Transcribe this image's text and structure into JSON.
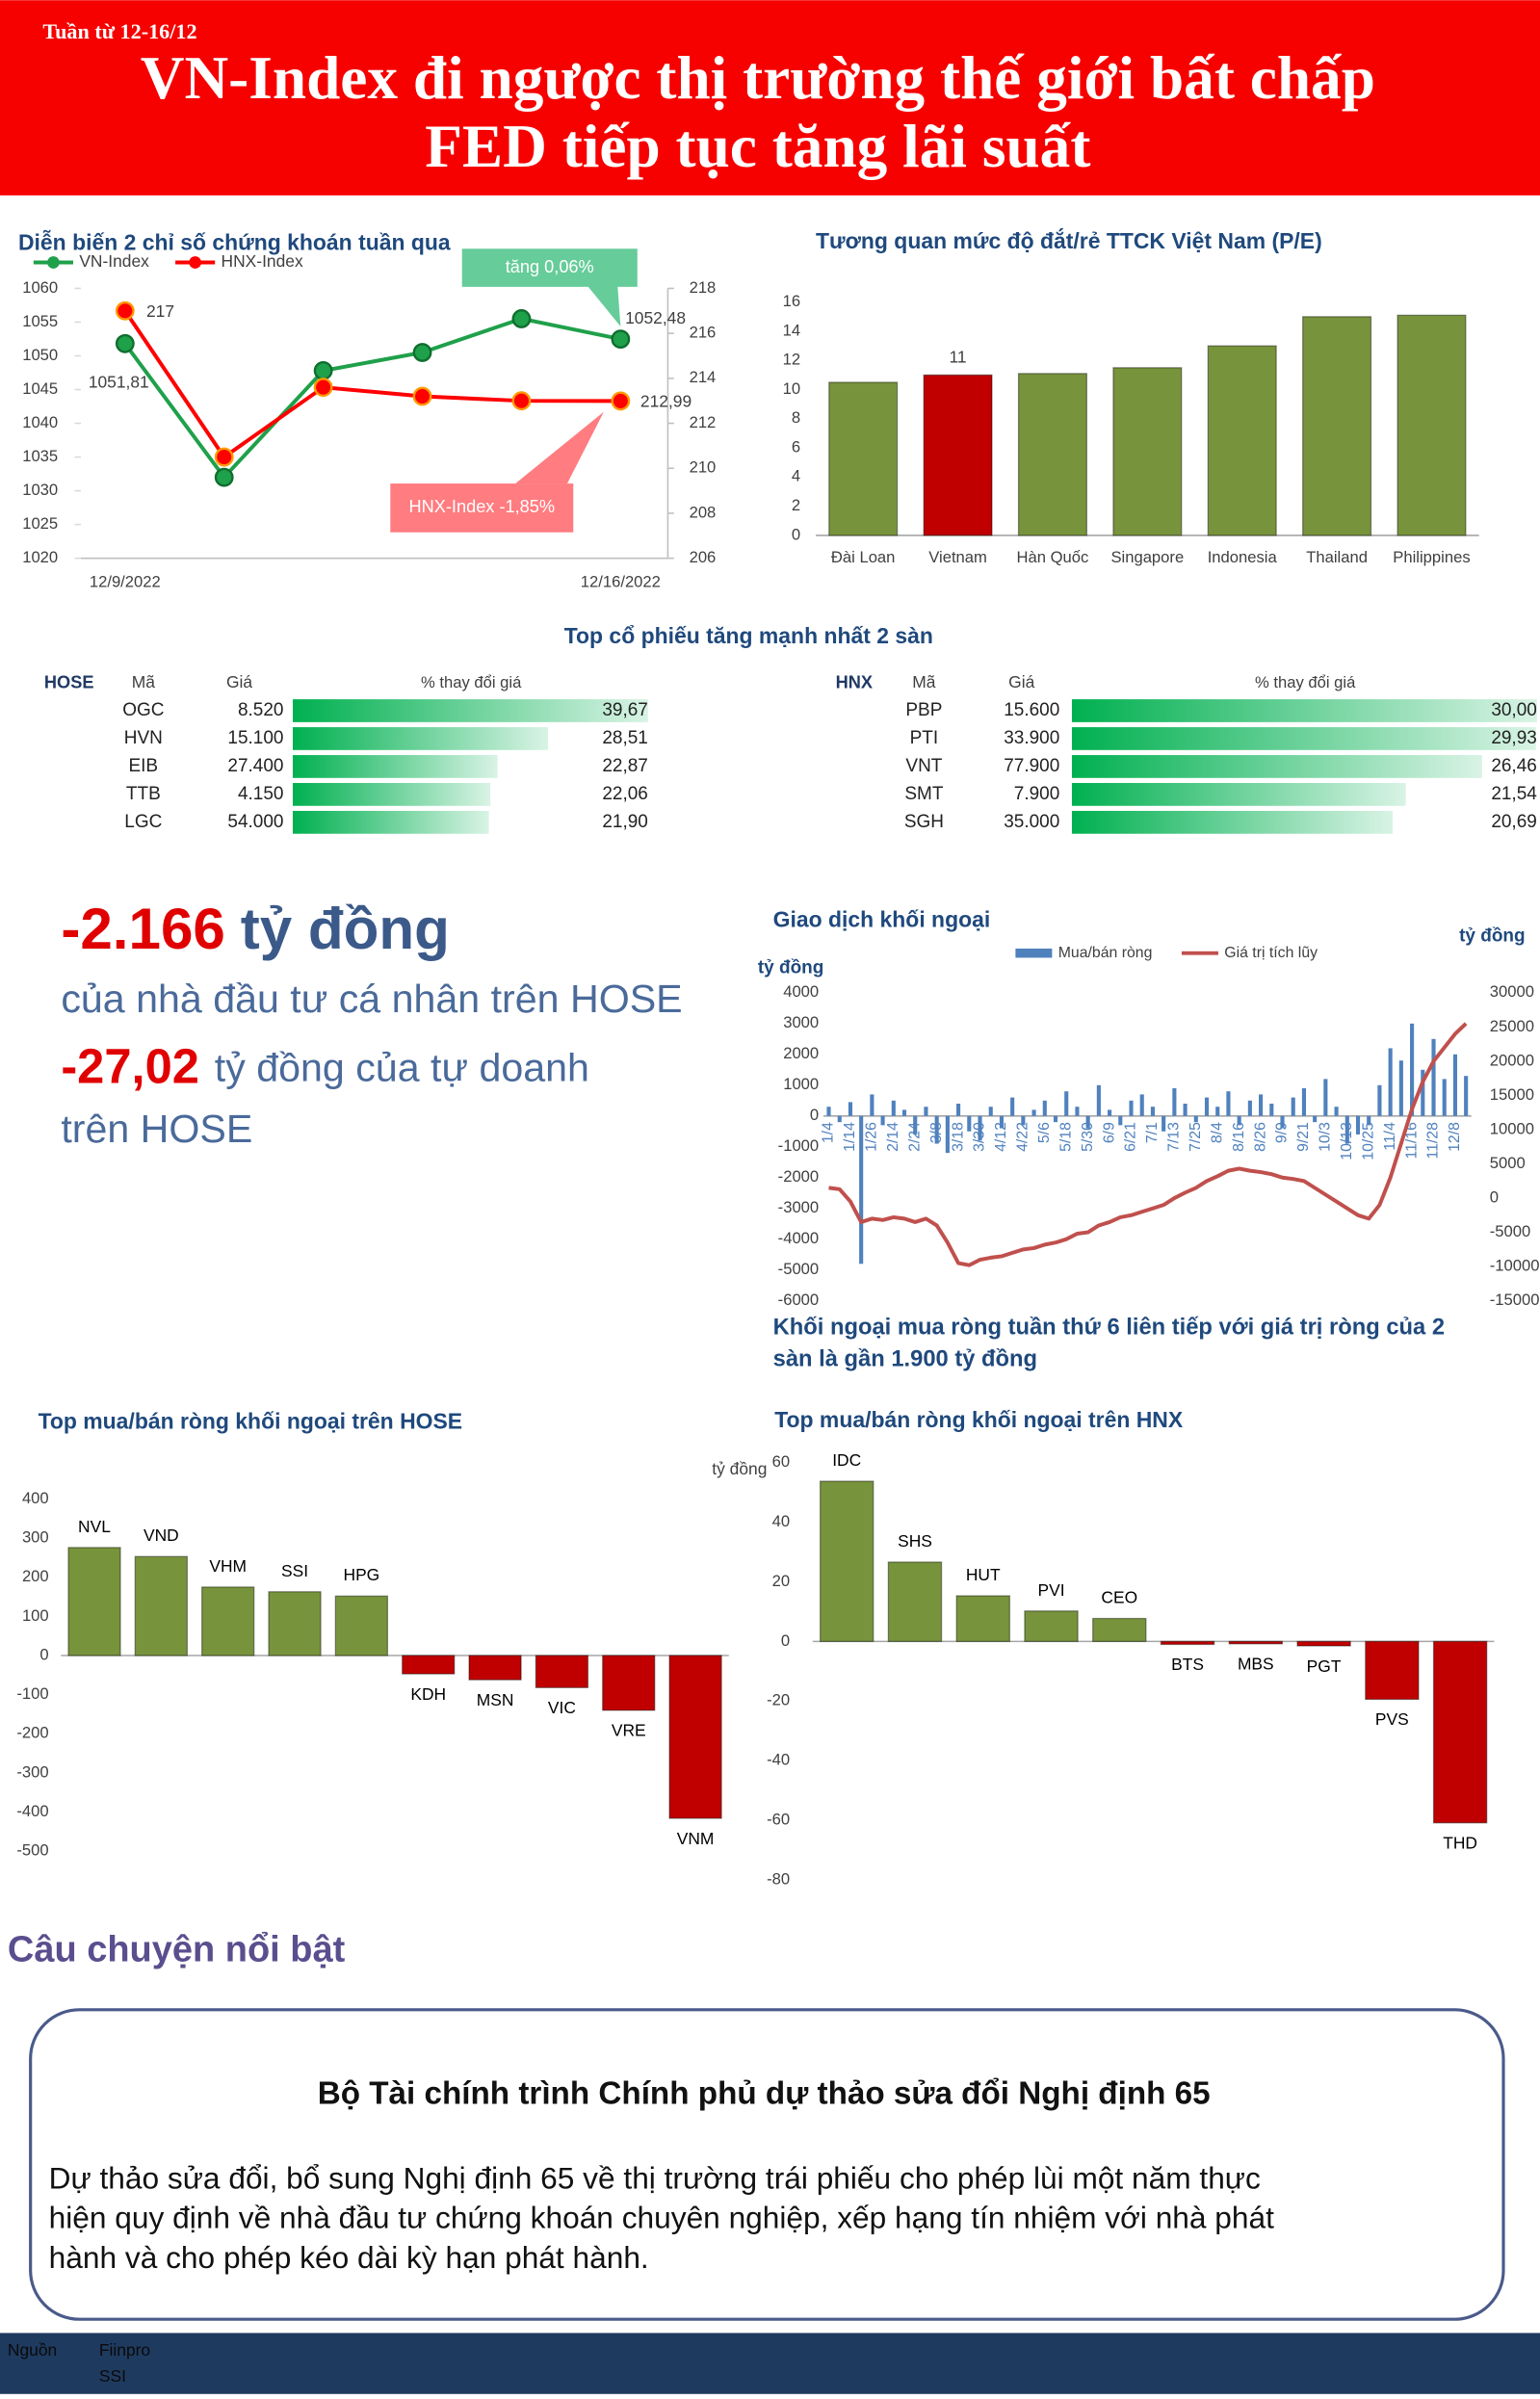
{
  "header": {
    "week": "Tuần từ 12-16/12",
    "title_lines": [
      "VN-Index đi ngược thị trường thế giới bất chấp",
      "FED tiếp tục tăng lãi suất"
    ]
  },
  "section_titles": {
    "top_gainers": "Top cổ phiếu tăng mạnh nhất 2 sàn"
  },
  "stats": {
    "individual": {
      "value": "-2.166",
      "unit": "tỷ đồng",
      "description": "của nhà đầu tư cá nhân trên HOSE"
    },
    "proprietary": {
      "value": "-27,02",
      "description_lines": [
        "tỷ đồng của tự doanh",
        "trên HOSE"
      ]
    }
  },
  "chart_data": [
    {
      "type": "line",
      "title": "Diễn biến 2 chỉ số chứng khoán tuần qua",
      "categories": [
        "12/9/2022",
        null,
        null,
        null,
        null,
        "12/16/2022"
      ],
      "series": [
        {
          "name": "VN-Index",
          "color": "#1fa04a",
          "values": [
            1051.81,
            1032.0,
            1047.8,
            1050.5,
            1055.5,
            1052.48
          ],
          "value_labels": [
            "1051,81",
            null,
            null,
            null,
            null,
            "1052,48"
          ]
        },
        {
          "name": "HNX-Index",
          "color": "#ff0000",
          "axis": "y2",
          "values": [
            217,
            210.5,
            213.6,
            213.2,
            213.0,
            212.99
          ],
          "value_labels": [
            "217",
            null,
            null,
            null,
            null,
            "212,99"
          ]
        }
      ],
      "ylim": [
        1020,
        1060
      ],
      "yticks": [
        1020,
        1025,
        1030,
        1035,
        1040,
        1045,
        1050,
        1055,
        1060
      ],
      "y2lim": [
        206,
        218
      ],
      "y2ticks": [
        206,
        208,
        210,
        212,
        214,
        216,
        218
      ],
      "annotations": [
        {
          "text": "tăng 0,06%",
          "color": "#66cc99"
        },
        {
          "text": "HNX-Index -1,85%",
          "color": "#ff7c80"
        }
      ]
    },
    {
      "type": "bar",
      "title": "Tương quan mức độ đắt/rẻ TTCK Việt Nam (P/E)",
      "categories": [
        "Đài Loan",
        "Vietnam",
        "Hàn Quốc",
        "Singapore",
        "Indonesia",
        "Thailand",
        "Philippines"
      ],
      "values": [
        10.5,
        11,
        11.1,
        11.5,
        13.0,
        15.0,
        15.1
      ],
      "value_labels": [
        null,
        "11",
        null,
        null,
        null,
        null,
        null
      ],
      "colors": [
        "#77933c",
        "#c00000",
        "#77933c",
        "#77933c",
        "#77933c",
        "#77933c",
        "#77933c"
      ],
      "ylim": [
        0,
        16
      ],
      "yticks": [
        0,
        2,
        4,
        6,
        8,
        10,
        12,
        14,
        16
      ]
    },
    {
      "type": "table-bar",
      "exchange": "HOSE",
      "columns": [
        "Mã",
        "Giá",
        "% thay đổi giá"
      ],
      "categories": [
        "OGC",
        "HVN",
        "EIB",
        "TTB",
        "LGC"
      ],
      "prices": [
        "8.520",
        "15.100",
        "27.400",
        "4.150",
        "54.000"
      ],
      "values": [
        39.67,
        28.51,
        22.87,
        22.06,
        21.9
      ],
      "value_labels": [
        "39,67",
        "28,51",
        "22,87",
        "22,06",
        "21,90"
      ],
      "color": "#00b050"
    },
    {
      "type": "table-bar",
      "exchange": "HNX",
      "columns": [
        "Mã",
        "Giá",
        "% thay đổi giá"
      ],
      "categories": [
        "PBP",
        "PTI",
        "VNT",
        "SMT",
        "SGH"
      ],
      "prices": [
        "15.600",
        "33.900",
        "77.900",
        "7.900",
        "35.000"
      ],
      "values": [
        30.0,
        29.93,
        26.46,
        21.54,
        20.69
      ],
      "value_labels": [
        "30,00",
        "29,93",
        "26,46",
        "21,54",
        "20,69"
      ],
      "color": "#00b050"
    },
    {
      "type": "combo",
      "title": "Giao dịch khối ngoại",
      "y_label": "tỷ đồng",
      "y2_label": "tỷ đồng",
      "categories": [
        "1/4",
        null,
        "1/14",
        null,
        "1/26",
        null,
        "2/14",
        null,
        "2/24",
        null,
        "3/8",
        null,
        "3/18",
        null,
        "3/30",
        null,
        "4/12",
        null,
        "4/22",
        null,
        "5/6",
        null,
        "5/18",
        null,
        "5/30",
        null,
        "6/9",
        null,
        "6/21",
        null,
        "7/1",
        null,
        "7/13",
        null,
        "7/25",
        null,
        "8/4",
        null,
        "8/16",
        null,
        "8/26",
        null,
        "9/9",
        null,
        "9/21",
        null,
        "10/3",
        null,
        "10/13",
        null,
        "10/25",
        null,
        "11/4",
        null,
        "11/16",
        null,
        "11/28",
        null,
        "12/8",
        null
      ],
      "series": [
        {
          "name": "Mua/bán ròng",
          "type": "bar",
          "color": "#4f81bd",
          "values": [
            300,
            -200,
            450,
            -4800,
            700,
            -300,
            500,
            200,
            -600,
            300,
            -900,
            -1200,
            400,
            -500,
            -800,
            300,
            -400,
            600,
            -300,
            200,
            500,
            -200,
            800,
            300,
            -400,
            1000,
            200,
            -300,
            500,
            700,
            300,
            -500,
            900,
            400,
            -200,
            600,
            300,
            800,
            -300,
            500,
            700,
            400,
            -400,
            600,
            900,
            -200,
            1200,
            300,
            -900,
            -600,
            -300,
            1000,
            2200,
            1800,
            3000,
            1500,
            2500,
            1200,
            2000,
            1300
          ]
        },
        {
          "name": "Giá trị tích lũy",
          "type": "line",
          "color": "#c0504d",
          "axis": "y2",
          "values": [
            1500,
            1300,
            -500,
            -3500,
            -3000,
            -3200,
            -2800,
            -3000,
            -3500,
            -3000,
            -4000,
            -6500,
            -9500,
            -9800,
            -9000,
            -8700,
            -8500,
            -8000,
            -7500,
            -7300,
            -6800,
            -6500,
            -6000,
            -5200,
            -5000,
            -4000,
            -3500,
            -2800,
            -2500,
            -2000,
            -1500,
            -1000,
            0,
            800,
            1500,
            2500,
            3200,
            4000,
            4300,
            4000,
            3800,
            3500,
            3000,
            2800,
            2500,
            1500,
            500,
            -500,
            -1500,
            -2500,
            -3000,
            -1000,
            3000,
            8000,
            13000,
            17000,
            20000,
            22000,
            24000,
            25500
          ]
        }
      ],
      "ylim": [
        -6000,
        4000
      ],
      "yticks": [
        -6000,
        -5000,
        -4000,
        -3000,
        -2000,
        -1000,
        0,
        1000,
        2000,
        3000,
        4000
      ],
      "y2lim": [
        -15000,
        30000
      ],
      "y2ticks": [
        -15000,
        -10000,
        -5000,
        0,
        5000,
        10000,
        15000,
        20000,
        25000,
        30000
      ],
      "note_lines": [
        "Khối ngoại mua ròng tuần thứ 6 liên tiếp với giá trị ròng của 2",
        "sàn là gần 1.900 tỷ đồng"
      ]
    },
    {
      "type": "bar",
      "title": "Top mua/bán ròng khối ngoại trên HOSE",
      "y_label": "tỷ đồng",
      "categories": [
        "NVL",
        "VND",
        "VHM",
        "SSI",
        "HPG",
        "KDH",
        "MSN",
        "VIC",
        "VRE",
        "VNM"
      ],
      "values": [
        276,
        253,
        175,
        163,
        152,
        -47,
        -62,
        -82,
        -140,
        -416
      ],
      "colors": [
        "#77933c",
        "#77933c",
        "#77933c",
        "#77933c",
        "#77933c",
        "#c00000",
        "#c00000",
        "#c00000",
        "#c00000",
        "#c00000"
      ],
      "ylim": [
        -500,
        400
      ],
      "yticks": [
        -500,
        -400,
        -300,
        -200,
        -100,
        0,
        100,
        200,
        300,
        400
      ]
    },
    {
      "type": "bar",
      "title": "Top mua/bán ròng khối ngoại trên HNX",
      "categories": [
        "IDC",
        "SHS",
        "HUT",
        "PVI",
        "CEO",
        "BTS",
        "MBS",
        "PGT",
        "PVS",
        "THD"
      ],
      "values": [
        53.7,
        26.6,
        15.3,
        10.2,
        7.7,
        -1.0,
        -0.8,
        -1.5,
        -19.4,
        -60.8
      ],
      "colors": [
        "#77933c",
        "#77933c",
        "#77933c",
        "#77933c",
        "#77933c",
        "#c00000",
        "#c00000",
        "#c00000",
        "#c00000",
        "#c00000"
      ],
      "ylim": [
        -80,
        60
      ],
      "yticks": [
        -80,
        -60,
        -40,
        -20,
        0,
        20,
        40,
        60
      ]
    }
  ],
  "story": {
    "heading": "Câu chuyện nổi bật",
    "title": "Bộ Tài chính trình Chính phủ dự thảo sửa đổi Nghị định 65",
    "body_lines": [
      "Dự thảo sửa đổi, bổ sung Nghị định 65 về thị trường trái phiếu cho phép lùi một năm thực",
      "hiện quy định về nhà đầu tư chứng khoán chuyên nghiệp, xếp hạng tín nhiệm với nhà phát",
      "hành và cho phép kéo dài kỳ hạn phát hành."
    ]
  },
  "footer": {
    "label": "Nguồn",
    "sources": [
      "Fiinpro",
      "SSI"
    ]
  }
}
